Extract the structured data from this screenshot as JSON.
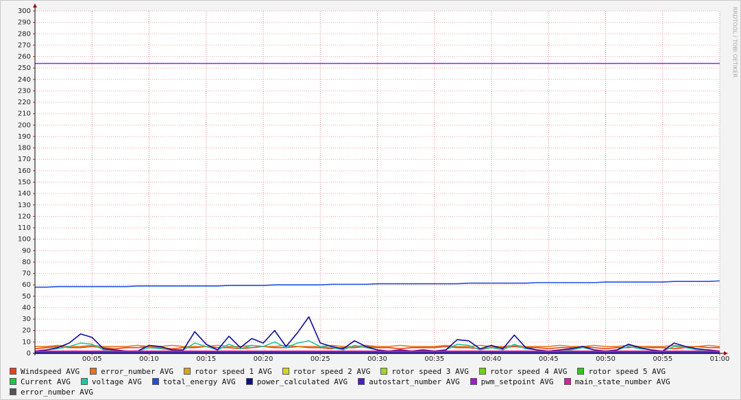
{
  "chart_data": {
    "type": "line",
    "watermark": "RRDTOOL / TOBI OETIKER",
    "x": [
      0,
      1,
      2,
      3,
      4,
      5,
      6,
      7,
      8,
      9,
      10,
      11,
      12,
      13,
      14,
      15,
      16,
      17,
      18,
      19,
      20,
      21,
      22,
      23,
      24,
      25,
      26,
      27,
      28,
      29,
      30,
      31,
      32,
      33,
      34,
      35,
      36,
      37,
      38,
      39,
      40,
      41,
      42,
      43,
      44,
      45,
      46,
      47,
      48,
      49,
      50,
      51,
      52,
      53,
      54,
      55,
      56,
      57,
      58,
      59,
      60
    ],
    "xlim": [
      0,
      60
    ],
    "xticks": [
      {
        "value": 5,
        "label": "00:05"
      },
      {
        "value": 10,
        "label": "00:10"
      },
      {
        "value": 15,
        "label": "00:15"
      },
      {
        "value": 20,
        "label": "00:20"
      },
      {
        "value": 25,
        "label": "00:25"
      },
      {
        "value": 30,
        "label": "00:30"
      },
      {
        "value": 35,
        "label": "00:35"
      },
      {
        "value": 40,
        "label": "00:40"
      },
      {
        "value": 45,
        "label": "00:45"
      },
      {
        "value": 50,
        "label": "00:50"
      },
      {
        "value": 55,
        "label": "00:55"
      },
      {
        "value": 60,
        "label": "01:00"
      }
    ],
    "ylim": [
      0,
      300
    ],
    "yticks": [
      0,
      10,
      20,
      30,
      40,
      50,
      60,
      70,
      80,
      90,
      100,
      110,
      120,
      130,
      140,
      150,
      160,
      170,
      180,
      190,
      200,
      210,
      220,
      230,
      240,
      250,
      260,
      270,
      280,
      290,
      300
    ],
    "grid": true,
    "series": [
      {
        "name": "Windspeed AVG",
        "color": "#de4618",
        "values": [
          4,
          5,
          6,
          5,
          5,
          6,
          5,
          4,
          5,
          5,
          6,
          5,
          4,
          5,
          5,
          6,
          5,
          5,
          4,
          5,
          6,
          5,
          5,
          6,
          5,
          5,
          4,
          5,
          5,
          6,
          5,
          5,
          4,
          5,
          5,
          5,
          6,
          5,
          5,
          4,
          5,
          5,
          6,
          5,
          5,
          4,
          5,
          5,
          6,
          5,
          4,
          5,
          5,
          6,
          5,
          5,
          4,
          5,
          6,
          5,
          5
        ]
      },
      {
        "name": "error_number AVG",
        "color": "#e8731c",
        "values": [
          6,
          6,
          7,
          6,
          6,
          7,
          6,
          6,
          6,
          7,
          6,
          6,
          7,
          6,
          6,
          6,
          7,
          6,
          6,
          7,
          6,
          6,
          7,
          6,
          6,
          6,
          7,
          6,
          6,
          7,
          6,
          6,
          7,
          6,
          6,
          6,
          7,
          6,
          6,
          7,
          6,
          6,
          7,
          6,
          6,
          6,
          7,
          6,
          6,
          7,
          6,
          6,
          7,
          6,
          6,
          6,
          7,
          6,
          6,
          7,
          6
        ]
      },
      {
        "name": "rotor speed 1 AVG",
        "color": "#e0a21c",
        "values": [
          0,
          0,
          0,
          0,
          0,
          0,
          0,
          0,
          0,
          0,
          0,
          0,
          0,
          0,
          0,
          0,
          0,
          0,
          0,
          0,
          0,
          0,
          0,
          0,
          0,
          0,
          0,
          0,
          0,
          0,
          0,
          0,
          0,
          0,
          0,
          0,
          0,
          0,
          0,
          0,
          0,
          0,
          0,
          0,
          0,
          0,
          0,
          0,
          0,
          0,
          0,
          0,
          0,
          0,
          0,
          0,
          0,
          0,
          0,
          0,
          0
        ]
      },
      {
        "name": "rotor speed 2 AVG",
        "color": "#d7d71c",
        "values": [
          0,
          0,
          0,
          0,
          0,
          0,
          0,
          0,
          0,
          0,
          0,
          0,
          0,
          0,
          0,
          0,
          0,
          0,
          0,
          0,
          0,
          0,
          0,
          0,
          0,
          0,
          0,
          0,
          0,
          0,
          0,
          0,
          0,
          0,
          0,
          0,
          0,
          0,
          0,
          0,
          0,
          0,
          0,
          0,
          0,
          0,
          0,
          0,
          0,
          0,
          0,
          0,
          0,
          0,
          0,
          0,
          0,
          0,
          0,
          0,
          0
        ]
      },
      {
        "name": "rotor speed 3 AVG",
        "color": "#a0d91c",
        "values": [
          0,
          0,
          0,
          0,
          0,
          0,
          0,
          0,
          0,
          0,
          0,
          0,
          0,
          0,
          0,
          0,
          0,
          0,
          0,
          0,
          0,
          0,
          0,
          0,
          0,
          0,
          0,
          0,
          0,
          0,
          0,
          0,
          0,
          0,
          0,
          0,
          0,
          0,
          0,
          0,
          0,
          0,
          0,
          0,
          0,
          0,
          0,
          0,
          0,
          0,
          0,
          0,
          0,
          0,
          0,
          0,
          0,
          0,
          0,
          0,
          0
        ]
      },
      {
        "name": "rotor speed 4 AVG",
        "color": "#6cd21c",
        "values": [
          0,
          0,
          0,
          0,
          0,
          0,
          0,
          0,
          0,
          0,
          0,
          0,
          0,
          0,
          0,
          0,
          0,
          0,
          0,
          0,
          0,
          0,
          0,
          0,
          0,
          0,
          0,
          0,
          0,
          0,
          0,
          0,
          0,
          0,
          0,
          0,
          0,
          0,
          0,
          0,
          0,
          0,
          0,
          0,
          0,
          0,
          0,
          0,
          0,
          0,
          0,
          0,
          0,
          0,
          0,
          0,
          0,
          0,
          0,
          0,
          0
        ]
      },
      {
        "name": "rotor speed 5 AVG",
        "color": "#34c81c",
        "values": [
          0,
          0,
          0,
          0,
          0,
          0,
          0,
          0,
          0,
          0,
          0,
          0,
          0,
          0,
          0,
          0,
          0,
          0,
          0,
          0,
          0,
          0,
          0,
          0,
          0,
          0,
          0,
          0,
          0,
          0,
          0,
          0,
          0,
          0,
          0,
          0,
          0,
          0,
          0,
          0,
          0,
          0,
          0,
          0,
          0,
          0,
          0,
          0,
          0,
          0,
          0,
          0,
          0,
          0,
          0,
          0,
          0,
          0,
          0,
          0,
          0
        ]
      },
      {
        "name": "Current AVG",
        "color": "#1ec84a",
        "values": [
          0.5,
          0.5,
          0.5,
          0.5,
          0.5,
          0.5,
          0.5,
          0.5,
          0.5,
          0.5,
          0.5,
          0.5,
          0.5,
          0.5,
          0.5,
          0.5,
          0.5,
          0.5,
          0.5,
          0.5,
          0.5,
          0.5,
          0.5,
          0.5,
          0.5,
          0.5,
          0.5,
          0.5,
          0.5,
          0.5,
          0.5,
          0.5,
          0.5,
          0.5,
          0.5,
          0.5,
          0.5,
          0.5,
          0.5,
          0.5,
          0.5,
          0.5,
          0.5,
          0.5,
          0.5,
          0.5,
          0.5,
          0.5,
          0.5,
          0.5,
          0.5,
          0.5,
          0.5,
          0.5,
          0.5,
          0.5,
          0.5,
          0.5,
          0.5,
          0.5,
          0.5
        ]
      },
      {
        "name": "voltage AVG",
        "color": "#1ec8a0",
        "values": [
          2,
          3,
          4,
          6,
          9,
          8,
          3,
          3,
          2,
          2,
          5,
          4,
          3,
          3,
          9,
          6,
          3,
          8,
          4,
          7,
          6,
          10,
          5,
          9,
          11,
          6,
          5,
          3,
          7,
          5,
          3,
          2,
          3,
          2,
          3,
          2,
          3,
          8,
          7,
          3,
          5,
          3,
          8,
          4,
          3,
          2,
          3,
          3,
          5,
          3,
          2,
          3,
          6,
          4,
          3,
          2,
          6,
          5,
          3,
          3,
          2
        ]
      },
      {
        "name": "total_energy AVG",
        "color": "#1c50de",
        "values": [
          58,
          58,
          58.5,
          58.5,
          58.5,
          58.5,
          58.5,
          58.5,
          58.5,
          59,
          59,
          59,
          59,
          59,
          59,
          59,
          59,
          59.5,
          59.5,
          59.5,
          59.5,
          60,
          60,
          60,
          60,
          60,
          60.5,
          60.5,
          60.5,
          60.5,
          61,
          61,
          61,
          61,
          61,
          61,
          61,
          61,
          61.5,
          61.5,
          61.5,
          61.5,
          61.5,
          61.5,
          62,
          62,
          62,
          62,
          62,
          62,
          62.5,
          62.5,
          62.5,
          62.5,
          62.5,
          62.5,
          63,
          63,
          63,
          63,
          63.5
        ]
      },
      {
        "name": "power_calculated AVG",
        "color": "#0c0c94",
        "values": [
          2,
          3,
          5,
          9,
          17,
          14,
          4,
          3,
          2,
          2,
          7,
          6,
          3,
          3,
          19,
          8,
          3,
          15,
          5,
          13,
          9,
          20,
          6,
          18,
          32,
          9,
          6,
          4,
          11,
          6,
          3,
          2,
          3,
          2,
          3,
          2,
          3,
          12,
          11,
          4,
          7,
          4,
          16,
          5,
          3,
          2,
          3,
          4,
          6,
          3,
          2,
          3,
          8,
          5,
          3,
          2,
          9,
          6,
          4,
          3,
          2
        ]
      },
      {
        "name": "autostart_number AVG",
        "color": "#4a1cd6",
        "values": [
          1,
          1,
          1,
          1,
          1,
          1,
          1,
          1,
          1,
          1,
          1,
          1,
          1,
          1,
          1,
          1,
          1,
          1,
          1,
          1,
          1,
          1,
          1,
          1,
          1,
          1,
          1,
          1,
          1,
          1,
          1,
          1,
          1,
          1,
          1,
          1,
          1,
          1,
          1,
          1,
          1,
          1,
          1,
          1,
          1,
          1,
          1,
          1,
          1,
          1,
          1,
          1,
          1,
          1,
          1,
          1,
          1,
          1,
          1,
          1,
          1
        ]
      },
      {
        "name": "pwm_setpoint AVG",
        "color": "#9c1cde",
        "values": [
          254,
          254,
          254,
          254,
          254,
          254,
          254,
          254,
          254,
          254,
          254,
          254,
          254,
          254,
          254,
          254,
          254,
          254,
          254,
          254,
          254,
          254,
          254,
          254,
          254,
          254,
          254,
          254,
          254,
          254,
          254,
          254,
          254,
          254,
          254,
          254,
          254,
          254,
          254,
          254,
          254,
          254,
          254,
          254,
          254,
          254,
          254,
          254,
          254,
          254,
          254,
          254,
          254,
          254,
          254,
          254,
          254,
          254,
          254,
          254,
          254
        ]
      },
      {
        "name": "main_state_number AVG",
        "color": "#de1c9c",
        "values": [
          2,
          2,
          2,
          2,
          2,
          2,
          2,
          2,
          2,
          2,
          2,
          2,
          2,
          2,
          2,
          2,
          2,
          2,
          2,
          2,
          2,
          2,
          2,
          2,
          2,
          2,
          2,
          2,
          2,
          2,
          2,
          2,
          2,
          2,
          2,
          2,
          2,
          2,
          2,
          2,
          2,
          2,
          2,
          2,
          2,
          2,
          2,
          2,
          2,
          2,
          2,
          2,
          2,
          2,
          2,
          2,
          2,
          2,
          2,
          2,
          2
        ]
      },
      {
        "name": "error_number AVG",
        "color": "#555555",
        "values": [
          0,
          0,
          0,
          0,
          0,
          0,
          0,
          0,
          0,
          0,
          0,
          0,
          0,
          0,
          0,
          0,
          0,
          0,
          0,
          0,
          0,
          0,
          0,
          0,
          0,
          0,
          0,
          0,
          0,
          0,
          0,
          0,
          0,
          0,
          0,
          0,
          0,
          0,
          0,
          0,
          0,
          0,
          0,
          0,
          0,
          0,
          0,
          0,
          0,
          0,
          0,
          0,
          0,
          0,
          0,
          0,
          0,
          0,
          0,
          0,
          0
        ]
      }
    ]
  }
}
